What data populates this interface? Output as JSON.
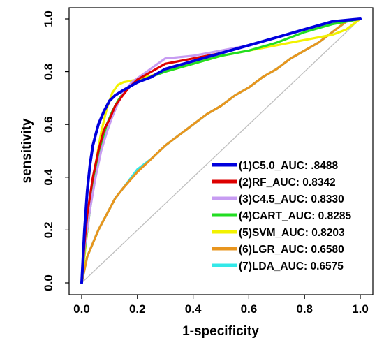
{
  "chart_data": {
    "type": "line",
    "title": "",
    "xlabel": "1-specificity",
    "ylabel": "sensitivity",
    "xlim": [
      0.0,
      1.0
    ],
    "ylim": [
      0.0,
      1.0
    ],
    "x_ticks": [
      "0.0",
      "0.2",
      "0.4",
      "0.6",
      "0.8",
      "1.0"
    ],
    "y_ticks": [
      "0.0",
      "0.2",
      "0.4",
      "0.6",
      "0.8",
      "1.0"
    ],
    "grid": false,
    "legend_position": "bottom-right",
    "reference_line": {
      "x": [
        0,
        1
      ],
      "y": [
        0,
        1
      ],
      "color": "#bfbfbf"
    },
    "series": [
      {
        "name": "(1)C5.0_AUC: .8488",
        "color": "#0000dd",
        "x": [
          0.0,
          0.01,
          0.02,
          0.03,
          0.04,
          0.05,
          0.06,
          0.08,
          0.1,
          0.12,
          0.15,
          0.2,
          0.25,
          0.3,
          0.4,
          0.5,
          0.6,
          0.7,
          0.8,
          0.9,
          1.0
        ],
        "y": [
          0.0,
          0.2,
          0.35,
          0.45,
          0.52,
          0.56,
          0.6,
          0.65,
          0.69,
          0.71,
          0.73,
          0.76,
          0.78,
          0.81,
          0.84,
          0.87,
          0.9,
          0.93,
          0.96,
          0.99,
          1.0
        ]
      },
      {
        "name": "(2)RF_AUC: 0.8342",
        "color": "#dd0000",
        "x": [
          0.0,
          0.01,
          0.02,
          0.04,
          0.06,
          0.08,
          0.1,
          0.12,
          0.14,
          0.17,
          0.2,
          0.25,
          0.3,
          0.4,
          0.5,
          0.6,
          0.7,
          0.8,
          0.9,
          1.0
        ],
        "y": [
          0.0,
          0.15,
          0.26,
          0.4,
          0.5,
          0.58,
          0.62,
          0.67,
          0.7,
          0.74,
          0.77,
          0.8,
          0.83,
          0.85,
          0.87,
          0.9,
          0.93,
          0.96,
          0.99,
          1.0
        ]
      },
      {
        "name": "(3)C4.5_AUC: 0.8330",
        "color": "#c79cf2",
        "x": [
          0.0,
          0.01,
          0.03,
          0.05,
          0.07,
          0.09,
          0.11,
          0.13,
          0.15,
          0.18,
          0.22,
          0.26,
          0.3,
          0.4,
          0.5,
          0.6,
          0.7,
          0.8,
          0.9,
          1.0
        ],
        "y": [
          0.0,
          0.13,
          0.28,
          0.4,
          0.5,
          0.57,
          0.63,
          0.68,
          0.72,
          0.76,
          0.79,
          0.82,
          0.85,
          0.86,
          0.88,
          0.9,
          0.93,
          0.96,
          0.99,
          1.0
        ]
      },
      {
        "name": "(4)CART_AUC: 0.8285",
        "color": "#22dd22",
        "x": [
          0.0,
          0.01,
          0.03,
          0.05,
          0.07,
          0.09,
          0.11,
          0.13,
          0.15,
          0.18,
          0.22,
          0.3,
          0.4,
          0.5,
          0.6,
          0.7,
          0.8,
          0.9,
          1.0
        ],
        "y": [
          0.0,
          0.12,
          0.28,
          0.42,
          0.52,
          0.6,
          0.65,
          0.69,
          0.72,
          0.75,
          0.77,
          0.8,
          0.83,
          0.86,
          0.88,
          0.91,
          0.95,
          0.98,
          1.0
        ]
      },
      {
        "name": "(5)SVM_AUC: 0.8203",
        "color": "#f2f200",
        "x": [
          0.0,
          0.01,
          0.03,
          0.05,
          0.07,
          0.09,
          0.11,
          0.13,
          0.15,
          0.2,
          0.3,
          0.4,
          0.5,
          0.6,
          0.7,
          0.8,
          0.9,
          0.95,
          1.0
        ],
        "y": [
          0.0,
          0.1,
          0.3,
          0.45,
          0.57,
          0.66,
          0.72,
          0.75,
          0.76,
          0.77,
          0.8,
          0.83,
          0.86,
          0.88,
          0.9,
          0.92,
          0.94,
          0.96,
          1.0
        ]
      },
      {
        "name": "(6)LGR_AUC: 0.6580",
        "color": "#e8951e",
        "x": [
          0.0,
          0.01,
          0.02,
          0.04,
          0.06,
          0.08,
          0.1,
          0.12,
          0.15,
          0.2,
          0.25,
          0.3,
          0.35,
          0.4,
          0.45,
          0.5,
          0.55,
          0.6,
          0.65,
          0.7,
          0.75,
          0.8,
          0.85,
          0.9,
          0.95,
          1.0
        ],
        "y": [
          0.0,
          0.05,
          0.1,
          0.15,
          0.2,
          0.24,
          0.28,
          0.32,
          0.36,
          0.42,
          0.47,
          0.52,
          0.56,
          0.6,
          0.64,
          0.67,
          0.71,
          0.74,
          0.78,
          0.81,
          0.85,
          0.88,
          0.91,
          0.95,
          0.99,
          1.0
        ]
      },
      {
        "name": "(7)LDA_AUC: 0.6575",
        "color": "#33e8e8",
        "x": [
          0.0,
          0.01,
          0.02,
          0.04,
          0.06,
          0.08,
          0.1,
          0.12,
          0.15,
          0.2,
          0.25,
          0.3,
          0.35,
          0.4,
          0.45,
          0.5,
          0.55,
          0.6,
          0.65,
          0.7,
          0.75,
          0.8,
          0.85,
          0.9,
          0.95,
          1.0
        ],
        "y": [
          0.0,
          0.05,
          0.1,
          0.15,
          0.2,
          0.24,
          0.28,
          0.32,
          0.36,
          0.43,
          0.47,
          0.52,
          0.56,
          0.6,
          0.64,
          0.67,
          0.71,
          0.74,
          0.78,
          0.81,
          0.85,
          0.88,
          0.91,
          0.95,
          0.99,
          1.0
        ]
      }
    ]
  }
}
